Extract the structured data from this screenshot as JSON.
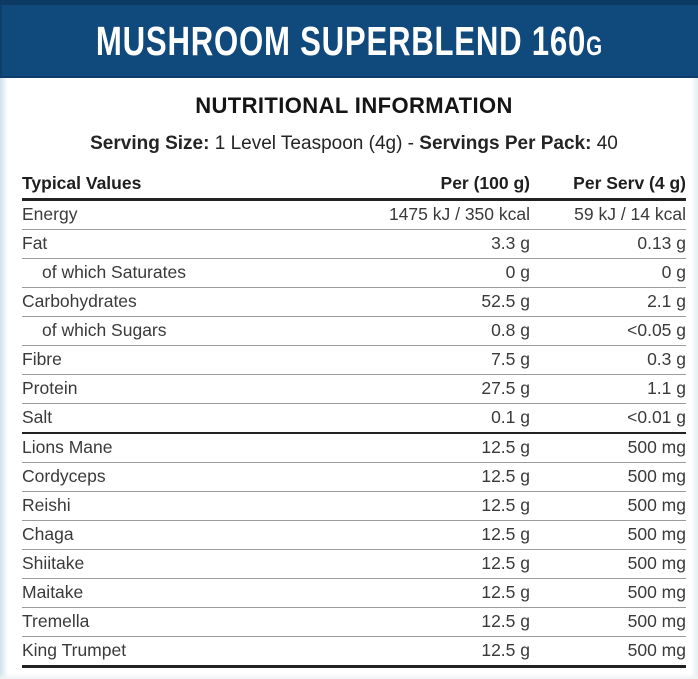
{
  "banner": {
    "title_main": "MUSHROOM SUPERBLEND 160",
    "title_unit_suffix": "G"
  },
  "section": {
    "heading": "NUTRITIONAL INFORMATION"
  },
  "serving": {
    "size_label": "Serving Size:",
    "size_value": " 1 Level Teaspoon (4g) - ",
    "pack_label": "Servings Per Pack:",
    "pack_value": " 40"
  },
  "table": {
    "headers": {
      "name": "Typical Values",
      "per100": "Per (100 g)",
      "perserv": "Per Serv (4 g)"
    },
    "rows": [
      {
        "name": "Energy",
        "per100": "1475 kJ / 350 kcal",
        "perserv": "59 kJ / 14 kcal"
      },
      {
        "name": "Fat",
        "per100": "3.3 g",
        "perserv": "0.13 g"
      },
      {
        "name": "of which Saturates",
        "per100": "0 g",
        "perserv": "0 g"
      },
      {
        "name": "Carbohydrates",
        "per100": "52.5 g",
        "perserv": "2.1 g"
      },
      {
        "name": "of which Sugars",
        "per100": "0.8 g",
        "perserv": "<0.05 g"
      },
      {
        "name": "Fibre",
        "per100": "7.5 g",
        "perserv": "0.3 g"
      },
      {
        "name": "Protein",
        "per100": "27.5 g",
        "perserv": "1.1 g"
      },
      {
        "name": "Salt",
        "per100": "0.1 g",
        "perserv": "<0.01 g"
      },
      {
        "name": "Lions Mane",
        "per100": "12.5 g",
        "perserv": "500 mg"
      },
      {
        "name": "Cordyceps",
        "per100": "12.5 g",
        "perserv": "500 mg"
      },
      {
        "name": "Reishi",
        "per100": "12.5 g",
        "perserv": "500 mg"
      },
      {
        "name": "Chaga",
        "per100": "12.5 g",
        "perserv": "500 mg"
      },
      {
        "name": "Shiitake",
        "per100": "12.5 g",
        "perserv": "500 mg"
      },
      {
        "name": "Maitake",
        "per100": "12.5 g",
        "perserv": "500 mg"
      },
      {
        "name": "Tremella",
        "per100": "12.5 g",
        "perserv": "500 mg"
      },
      {
        "name": "King Trumpet",
        "per100": "12.5 g",
        "perserv": "500 mg"
      }
    ]
  },
  "colors": {
    "banner_blue": "#10497c",
    "banner_top_edge": "#0d3a62",
    "rule_thin": "#9c9c9c",
    "rule_thick": "#222222",
    "text_dark": "#1e1e1e"
  }
}
